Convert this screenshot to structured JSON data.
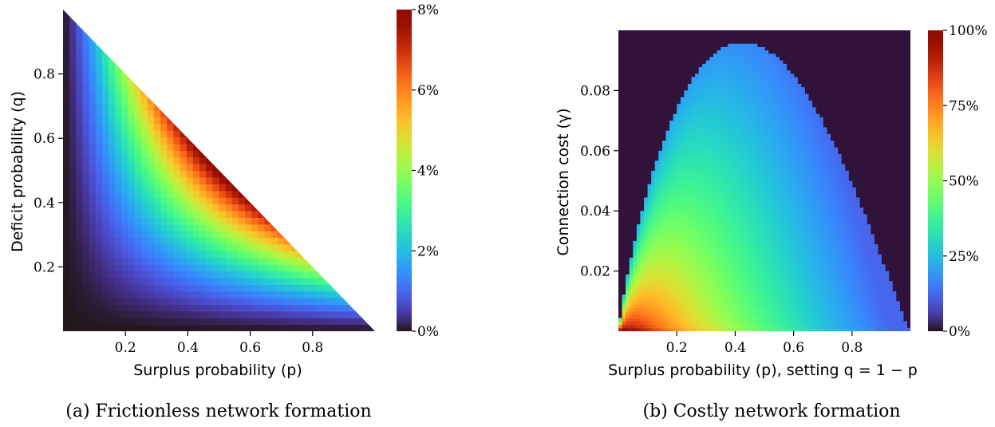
{
  "chart_data": [
    {
      "type": "heatmap",
      "caption": "(a) Frictionless network formation",
      "xlabel": "Surplus probability (p)",
      "ylabel": "Deficit probability (q)",
      "xlim": [
        0,
        1
      ],
      "ylim": [
        0,
        1
      ],
      "xticks": [
        {
          "value": 0.2,
          "label": "0.2"
        },
        {
          "value": 0.4,
          "label": "0.4"
        },
        {
          "value": 0.6,
          "label": "0.6"
        },
        {
          "value": 0.8,
          "label": "0.8"
        }
      ],
      "yticks": [
        {
          "value": 0.2,
          "label": "0.2"
        },
        {
          "value": 0.4,
          "label": "0.4"
        },
        {
          "value": 0.6,
          "label": "0.6"
        },
        {
          "value": 0.8,
          "label": "0.8"
        }
      ],
      "region": "p + q <= 1",
      "colormap": "turbo",
      "colorbar": {
        "range": [
          0,
          8
        ],
        "ticks": [
          {
            "value": 0,
            "label": "0%"
          },
          {
            "value": 2,
            "label": "2%"
          },
          {
            "value": 4,
            "label": "4%"
          },
          {
            "value": 6,
            "label": "6%"
          },
          {
            "value": 8,
            "label": "8%"
          }
        ]
      }
    },
    {
      "type": "heatmap",
      "caption": "(b) Costly network formation",
      "xlabel": "Surplus probability (p), setting q = 1 − p",
      "ylabel": "Connection cost (γ)",
      "xlim": [
        0,
        1
      ],
      "ylim": [
        0,
        0.1
      ],
      "xticks": [
        {
          "value": 0.2,
          "label": "0.2"
        },
        {
          "value": 0.4,
          "label": "0.4"
        },
        {
          "value": 0.6,
          "label": "0.6"
        },
        {
          "value": 0.8,
          "label": "0.8"
        }
      ],
      "yticks": [
        {
          "value": 0.02,
          "label": "0.02"
        },
        {
          "value": 0.04,
          "label": "0.04"
        },
        {
          "value": 0.06,
          "label": "0.06"
        },
        {
          "value": 0.08,
          "label": "0.08"
        }
      ],
      "colormap": "turbo",
      "background_color": "#30123b",
      "colorbar": {
        "range": [
          0,
          100
        ],
        "ticks": [
          {
            "value": 0,
            "label": "0%"
          },
          {
            "value": 25,
            "label": "25%"
          },
          {
            "value": 50,
            "label": "50%"
          },
          {
            "value": 75,
            "label": "75%"
          },
          {
            "value": 100,
            "label": "100%"
          }
        ]
      }
    }
  ]
}
